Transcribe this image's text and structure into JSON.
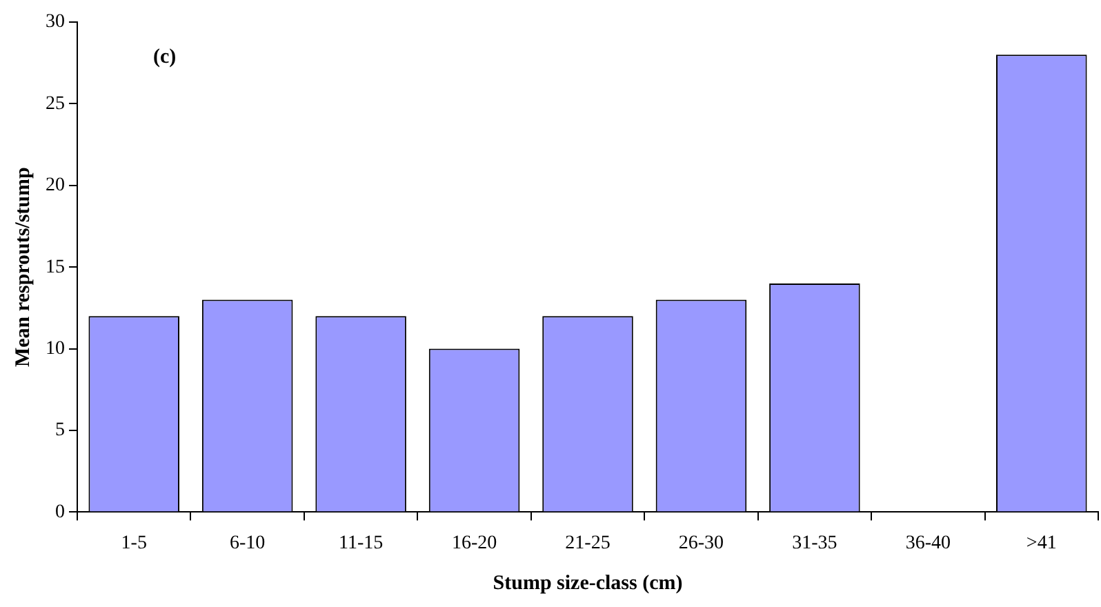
{
  "chart_data": {
    "type": "bar",
    "categories": [
      "1-5",
      "6-10",
      "11-15",
      "16-20",
      "21-25",
      "26-30",
      "31-35",
      "36-40",
      ">41"
    ],
    "values": [
      12,
      13,
      12,
      10,
      12,
      13,
      14,
      0,
      28
    ],
    "color": "#9999ff",
    "xlabel": "Stump size-class (cm)",
    "ylabel": "Mean resprouts/stump",
    "ylim": [
      0,
      30
    ],
    "yticks": [
      0,
      5,
      10,
      15,
      20,
      25,
      30
    ],
    "grid": false,
    "legend": false,
    "annotations": [
      "(c)"
    ]
  }
}
